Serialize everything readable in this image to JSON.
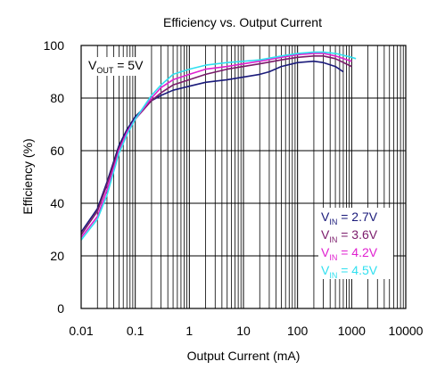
{
  "chart_data": {
    "type": "line",
    "title": "Efficiency vs. Output Current",
    "xlabel": "Output Current (mA)",
    "ylabel": "Efficiency (%)",
    "xscale": "log",
    "xlim": [
      0.01,
      10000
    ],
    "ylim": [
      0,
      100
    ],
    "x_ticks": [
      "0.01",
      "0.1",
      "1",
      "10",
      "100",
      "1000",
      "10000"
    ],
    "y_ticks": [
      "0",
      "20",
      "40",
      "60",
      "80",
      "100"
    ],
    "grid": true,
    "legend_position": "bottom-right",
    "annotation": {
      "main": "V",
      "sub": "OUT",
      "rest": " = 5V"
    },
    "series": [
      {
        "name_main": "V",
        "name_sub": "IN",
        "name_rest": " = 2.7V",
        "color": "#1a1a7a",
        "x": [
          0.01,
          0.02,
          0.03,
          0.05,
          0.07,
          0.1,
          0.2,
          0.3,
          0.5,
          1,
          2,
          5,
          10,
          20,
          30,
          50,
          100,
          200,
          300,
          500,
          700
        ],
        "y": [
          29,
          38,
          48,
          62,
          68,
          73,
          79,
          81,
          83,
          84.5,
          86,
          87,
          88,
          89,
          90,
          92,
          93.5,
          94,
          93.5,
          92,
          90
        ]
      },
      {
        "name_main": "V",
        "name_sub": "IN",
        "name_rest": " = 3.6V",
        "color": "#7a1a6a",
        "x": [
          0.01,
          0.02,
          0.03,
          0.05,
          0.07,
          0.1,
          0.2,
          0.3,
          0.5,
          1,
          2,
          5,
          10,
          20,
          50,
          100,
          200,
          300,
          500,
          1000
        ],
        "y": [
          28,
          37,
          47,
          61,
          67,
          72,
          79,
          82,
          85,
          87,
          89,
          91,
          92,
          93,
          94.5,
          95.5,
          96,
          96,
          95,
          92
        ]
      },
      {
        "name_main": "V",
        "name_sub": "IN",
        "name_rest": " = 4.2V",
        "color": "#e020d0",
        "x": [
          0.01,
          0.02,
          0.03,
          0.05,
          0.07,
          0.1,
          0.2,
          0.3,
          0.5,
          1,
          2,
          5,
          10,
          20,
          50,
          100,
          200,
          300,
          500,
          1000
        ],
        "y": [
          27,
          35,
          45,
          60,
          67,
          72,
          80,
          84,
          87,
          89,
          91,
          92,
          93,
          94,
          95.5,
          96.5,
          97,
          97,
          96,
          94
        ]
      },
      {
        "name_main": "V",
        "name_sub": "IN",
        "name_rest": " = 4.5V",
        "color": "#30e0f0",
        "x": [
          0.01,
          0.02,
          0.03,
          0.05,
          0.07,
          0.1,
          0.2,
          0.3,
          0.5,
          1,
          2,
          5,
          10,
          20,
          50,
          100,
          200,
          300,
          500,
          1000,
          1200
        ],
        "y": [
          26,
          34,
          43,
          59,
          66,
          72,
          81,
          85,
          89,
          91,
          92.5,
          93.5,
          94,
          94.5,
          96,
          97,
          97.5,
          97.5,
          97,
          95.5,
          95
        ]
      }
    ]
  }
}
